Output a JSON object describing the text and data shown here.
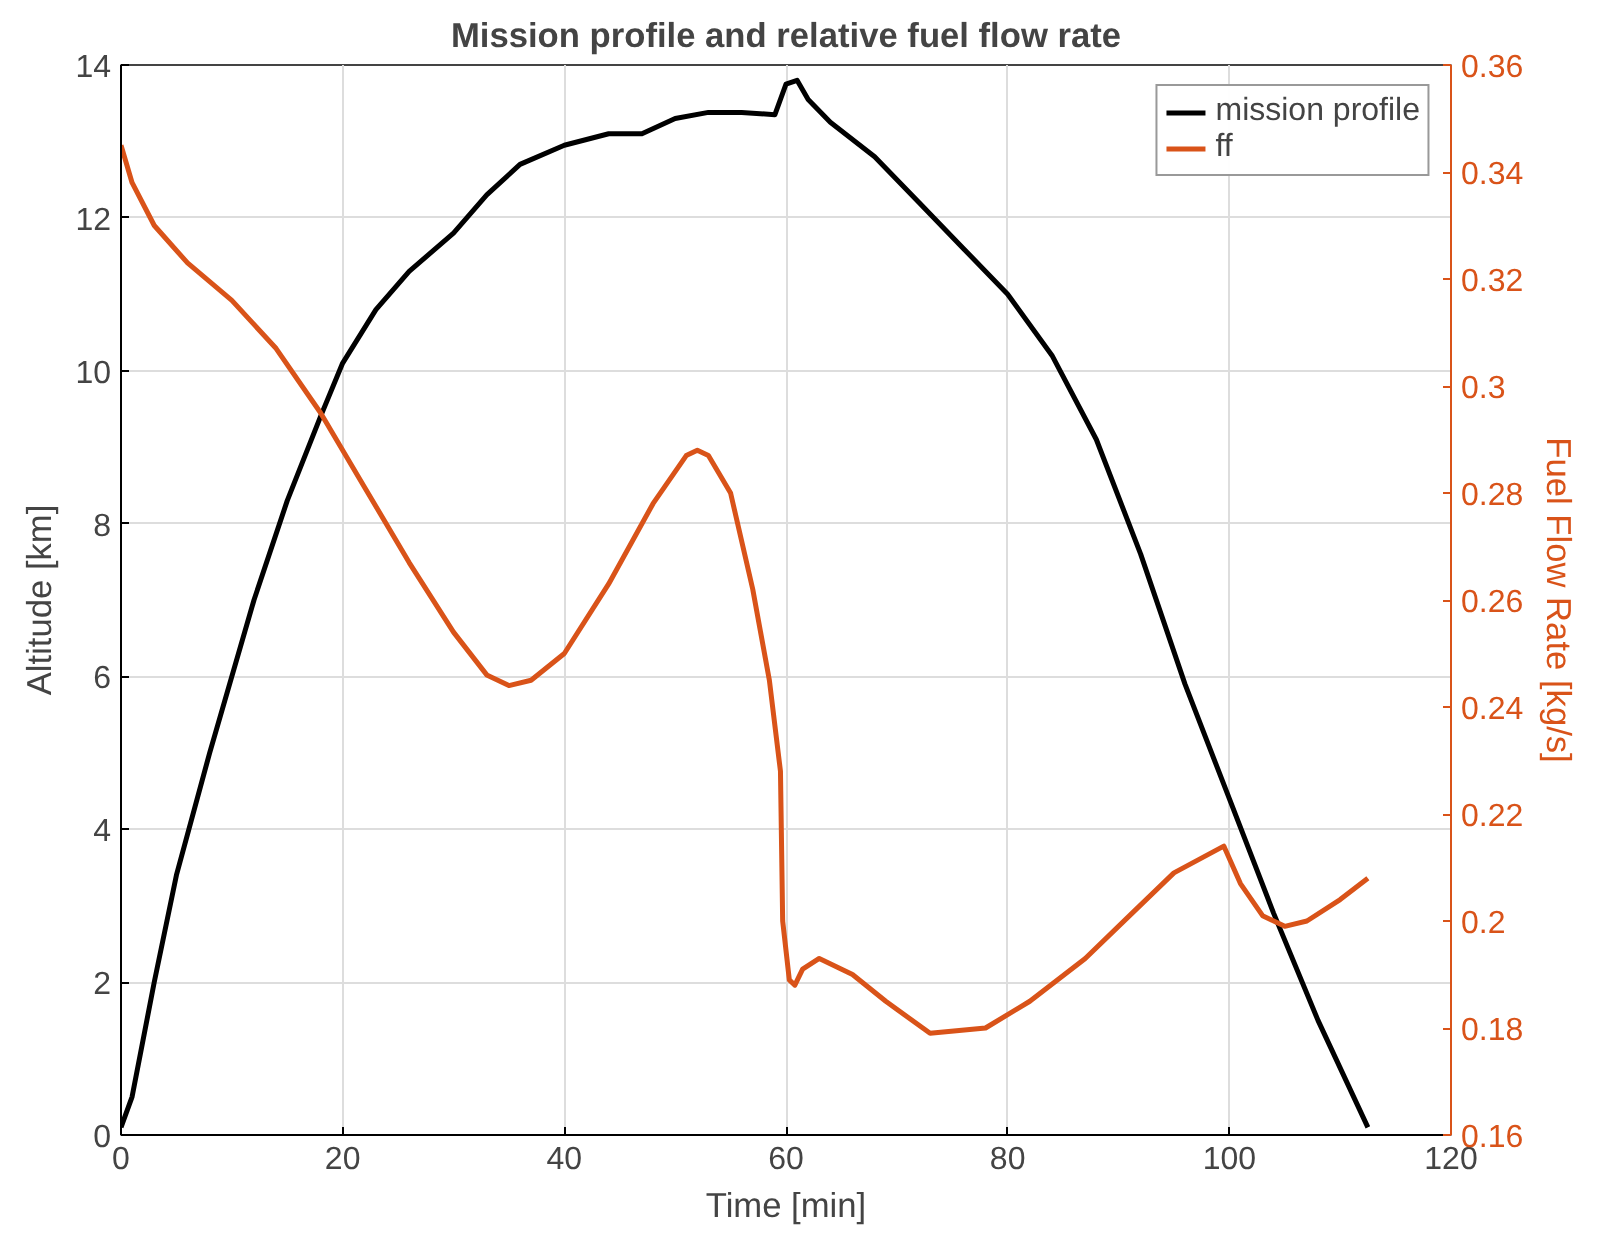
{
  "chart_data": {
    "type": "line",
    "title": "Mission profile and relative fuel flow rate",
    "xlabel": "Time [min]",
    "ylabel": "Altitude [km]",
    "y2label": "Fuel Flow Rate [kg/s]",
    "xlim": [
      0,
      120
    ],
    "xticks": [
      0,
      20,
      40,
      60,
      80,
      100,
      120
    ],
    "ylim": [
      0,
      14
    ],
    "yticks": [
      0,
      2,
      4,
      6,
      8,
      10,
      12,
      14
    ],
    "y2lim": [
      0.16,
      0.36
    ],
    "y2ticks": [
      0.16,
      0.18,
      0.2,
      0.22,
      0.24,
      0.26,
      0.28,
      0.3,
      0.32,
      0.34,
      0.36
    ],
    "grid": true,
    "legend": "top right",
    "line_style": "solid",
    "series": [
      {
        "name": "mission profile",
        "color": "#000000",
        "x": [
          0,
          1,
          3,
          5,
          8,
          12,
          15,
          18,
          20,
          23,
          26,
          30,
          33,
          36,
          40,
          44,
          47,
          50,
          53,
          56,
          59,
          60,
          61,
          62,
          64,
          68,
          72,
          76,
          80,
          84,
          88,
          92,
          96,
          100,
          104,
          108,
          112.5
        ],
        "values": [
          0.1,
          0.5,
          2,
          3.4,
          5,
          7,
          8.3,
          9.4,
          10.1,
          10.8,
          11.3,
          11.8,
          12.3,
          12.7,
          12.95,
          13.1,
          13.1,
          13.3,
          13.38,
          13.38,
          13.35,
          13.75,
          13.8,
          13.55,
          13.25,
          12.8,
          12.2,
          11.6,
          11.0,
          10.2,
          9.1,
          7.6,
          5.9,
          4.4,
          2.9,
          1.5,
          0.1
        ]
      },
      {
        "name": "ff",
        "color": "#d95319",
        "axis": "y2",
        "x": [
          0,
          1,
          3,
          6,
          10,
          14,
          18,
          22,
          26,
          30,
          33,
          35,
          37,
          40,
          44,
          48,
          51,
          52,
          53,
          55,
          57,
          58.5,
          59.5,
          59.7,
          60.3,
          60.8,
          61.5,
          63,
          66,
          69,
          73,
          78,
          82,
          87,
          91,
          95,
          99.5,
          101,
          103,
          105,
          107,
          110,
          112.5
        ],
        "values": [
          0.345,
          0.338,
          0.33,
          0.323,
          0.316,
          0.307,
          0.295,
          0.281,
          0.267,
          0.254,
          0.246,
          0.244,
          0.245,
          0.25,
          0.263,
          0.278,
          0.287,
          0.288,
          0.287,
          0.28,
          0.262,
          0.245,
          0.228,
          0.2,
          0.189,
          0.188,
          0.191,
          0.193,
          0.19,
          0.185,
          0.179,
          0.18,
          0.185,
          0.193,
          0.201,
          0.209,
          0.214,
          0.207,
          0.201,
          0.199,
          0.2,
          0.204,
          0.208
        ]
      }
    ]
  }
}
